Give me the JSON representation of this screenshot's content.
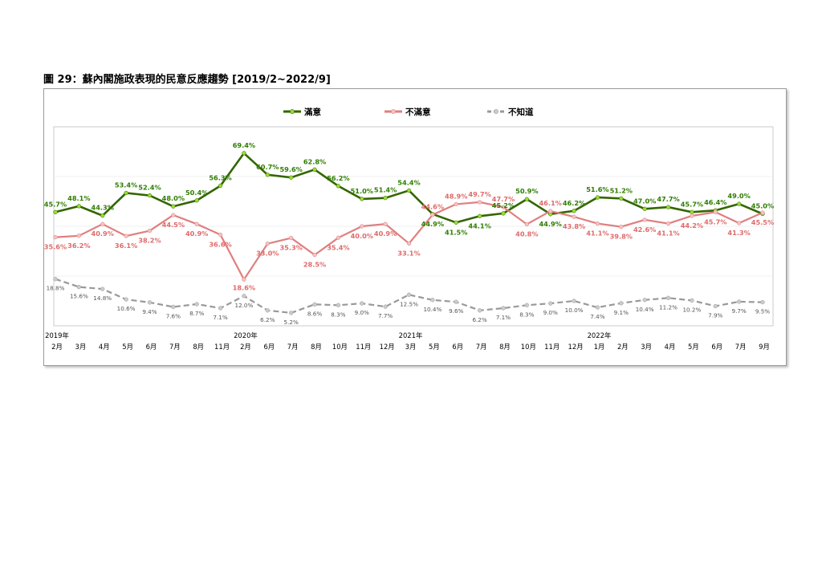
{
  "caption": "圖 29：蘇內閣施政表現的民意反應趨勢 [2019/2~2022/9]",
  "chart_data": {
    "type": "line",
    "title": "",
    "xlabel": "",
    "ylabel": "",
    "ylim": [
      0,
      80
    ],
    "legend_position": "top",
    "grid": "horizontal",
    "categories": [
      "2月",
      "3月",
      "4月",
      "5月",
      "6月",
      "7月",
      "8月",
      "11月",
      "2月",
      "6月",
      "7月",
      "8月",
      "10月",
      "11月",
      "12月",
      "3月",
      "5月",
      "6月",
      "7月",
      "8月",
      "10月",
      "11月",
      "12月",
      "1月",
      "2月",
      "3月",
      "4月",
      "5月",
      "6月",
      "7月",
      "9月"
    ],
    "years": [
      {
        "label": "2019年",
        "index": 0
      },
      {
        "label": "2020年",
        "index": 8
      },
      {
        "label": "2021年",
        "index": 15
      },
      {
        "label": "2022年",
        "index": 23
      }
    ],
    "series": [
      {
        "name": "滿意",
        "color": "#336600",
        "marker_color": "#99dd33",
        "dashed": false,
        "values": [
          45.7,
          48.1,
          44.3,
          53.4,
          52.4,
          48.0,
          50.4,
          56.3,
          69.4,
          60.7,
          59.6,
          62.8,
          56.2,
          51.0,
          51.4,
          54.4,
          44.9,
          41.5,
          44.1,
          45.2,
          50.9,
          44.9,
          46.2,
          51.6,
          51.2,
          47.0,
          47.7,
          45.7,
          46.4,
          49.0,
          45.0
        ],
        "labels": [
          "45.7%",
          "48.1%",
          "44.3%",
          "53.4%",
          "52.4%",
          "48.0%",
          "50.4%",
          "56.3%",
          "69.4%",
          "60.7%",
          "59.6%",
          "62.8%",
          "56.2%",
          "51.0%",
          "51.4%",
          "54.4%",
          "44.9%",
          "41.5%",
          "44.1%",
          "45.2%",
          "50.9%",
          "44.9%",
          "46.2%",
          "51.6%",
          "51.2%",
          "47.0%",
          "47.7%",
          "45.7%",
          "46.4%",
          "49.0%",
          "45.0%"
        ]
      },
      {
        "name": "不滿意",
        "color": "#e07f7f",
        "marker_color": "#f4c2c2",
        "dashed": false,
        "values": [
          35.6,
          36.2,
          40.9,
          36.1,
          38.2,
          44.5,
          40.9,
          36.6,
          18.6,
          33.0,
          35.3,
          28.5,
          35.4,
          40.0,
          40.9,
          33.1,
          44.6,
          48.9,
          49.7,
          47.7,
          40.8,
          46.1,
          43.8,
          41.1,
          39.8,
          42.6,
          41.1,
          44.2,
          45.7,
          41.3,
          45.5
        ],
        "labels": [
          "35.6%",
          "36.2%",
          "40.9%",
          "36.1%",
          "38.2%",
          "44.5%",
          "40.9%",
          "36.6%",
          "18.6%",
          "33.0%",
          "35.3%",
          "28.5%",
          "35.4%",
          "40.0%",
          "40.9%",
          "33.1%",
          "44.6%",
          "48.9%",
          "49.7%",
          "47.7%",
          "40.8%",
          "46.1%",
          "43.8%",
          "41.1%",
          "39.8%",
          "42.6%",
          "41.1%",
          "44.2%",
          "45.7%",
          "41.3%",
          "45.5%"
        ]
      },
      {
        "name": "不知道",
        "color": "#999999",
        "marker_color": "#cccccc",
        "dashed": true,
        "values": [
          18.8,
          15.6,
          14.8,
          10.6,
          9.4,
          7.6,
          8.7,
          7.1,
          12.0,
          6.2,
          5.2,
          8.6,
          8.3,
          9.0,
          7.7,
          12.5,
          10.4,
          9.6,
          6.2,
          7.1,
          8.3,
          9.0,
          10.0,
          7.4,
          9.1,
          10.4,
          11.2,
          10.2,
          7.9,
          9.7,
          9.5
        ],
        "labels": [
          "18.8%",
          "15.6%",
          "14.8%",
          "10.6%",
          "9.4%",
          "7.6%",
          "8.7%",
          "7.1%",
          "12.0%",
          "6.2%",
          "5.2%",
          "8.6%",
          "8.3%",
          "9.0%",
          "7.7%",
          "12.5%",
          "10.4%",
          "9.6%",
          "6.2%",
          "7.1%",
          "8.3%",
          "9.0%",
          "10.0%",
          "7.4%",
          "9.1%",
          "10.4%",
          "11.2%",
          "10.2%",
          "7.9%",
          "9.7%",
          "9.5%"
        ]
      }
    ]
  }
}
